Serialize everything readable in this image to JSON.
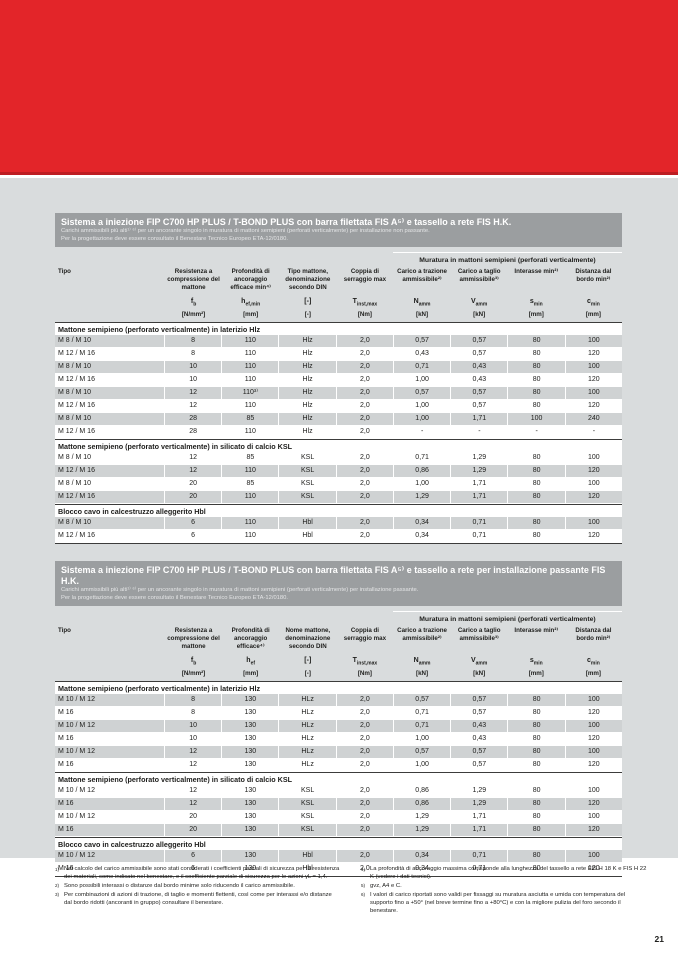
{
  "page": {
    "number": "21"
  },
  "colors": {
    "header_red": "#e32529",
    "header_red_edge": "#bd1d22",
    "page_gray": "#d9dcdd",
    "title_band_gray": "#9b9ea0",
    "row_shaded_gray": "#cfd2d3"
  },
  "shared": {
    "muratura_header": "Muratura in mattoni semipieni (perforati verticalmente)"
  },
  "tables": [
    {
      "title": "Sistema a iniezione FIP C700 HP PLUS / T-BOND PLUS con barra filettata FIS A⁵⁾ e tassello a rete FIS H.K.",
      "subtitle1": "Carichi ammissibili più alti¹⁾ ⁶⁾ per un ancorante singolo in muratura di mattoni semipieni (perforati verticalmente) per installazione non passante.",
      "subtitle2": "Per la progettazione deve essere consultato il Benestare Tecnico Europeo ETA-12/0180.",
      "columns": [
        {
          "label": "Tipo",
          "symbol": "",
          "unit": ""
        },
        {
          "label": "Resistenza a compressione del mattone",
          "symbol": "f~b",
          "unit": "[N/mm²]"
        },
        {
          "label": "Profondità di ancoraggio efficace min⁴⁾",
          "symbol": "h~ef,min",
          "unit": "[mm]"
        },
        {
          "label": "Tipo mattone, denominazione secondo DIN",
          "symbol": "[-]",
          "unit": "[-]"
        },
        {
          "label": "Coppia di serraggio max",
          "symbol": "T~inst,max",
          "unit": "[Nm]"
        },
        {
          "label": "Carico a trazione ammissibile²⁾",
          "symbol": "N~amm",
          "unit": "[kN]"
        },
        {
          "label": "Carico a taglio ammissibile³⁾",
          "symbol": "V~amm",
          "unit": "[kN]"
        },
        {
          "label": "Interasse min²⁾",
          "symbol": "s~min",
          "unit": "[mm]"
        },
        {
          "label": "Distanza dal bordo min²⁾",
          "symbol": "c~min",
          "unit": "[mm]"
        }
      ],
      "sections": [
        {
          "header": "Mattone semipieno (perforato verticalmente) in laterizio Hlz",
          "rows": [
            {
              "shaded": true,
              "cells": [
                "M 8 / M 10",
                "8",
                "110",
                "Hlz",
                "2,0",
                "0,57",
                "0,57",
                "80",
                "100"
              ]
            },
            {
              "shaded": false,
              "cells": [
                "M 12 / M 16",
                "8",
                "110",
                "Hlz",
                "2,0",
                "0,43",
                "0,57",
                "80",
                "120"
              ]
            },
            {
              "shaded": true,
              "cells": [
                "M 8 / M 10",
                "10",
                "110",
                "Hlz",
                "2,0",
                "0,71",
                "0,43",
                "80",
                "100"
              ]
            },
            {
              "shaded": false,
              "cells": [
                "M 12 / M 16",
                "10",
                "110",
                "Hlz",
                "2,0",
                "1,00",
                "0,43",
                "80",
                "120"
              ]
            },
            {
              "shaded": true,
              "cells": [
                "M 8 / M 10",
                "12",
                "110³⁾",
                "Hlz",
                "2,0",
                "0,57",
                "0,57",
                "80",
                "100"
              ]
            },
            {
              "shaded": false,
              "cells": [
                "M 12 / M 16",
                "12",
                "110",
                "Hlz",
                "2,0",
                "1,00",
                "0,57",
                "80",
                "120"
              ]
            },
            {
              "shaded": true,
              "cells": [
                "M 8 / M 10",
                "28",
                "85",
                "Hlz",
                "2,0",
                "1,00",
                "1,71",
                "100",
                "240"
              ]
            },
            {
              "shaded": false,
              "cells": [
                "M 12 / M 16",
                "28",
                "110",
                "Hlz",
                "2,0",
                "-",
                "-",
                "-",
                "-"
              ]
            }
          ]
        },
        {
          "header": "Mattone semipieno (perforato verticalmente) in silicato di calcio KSL",
          "rows": [
            {
              "shaded": false,
              "cells": [
                "M 8 / M 10",
                "12",
                "85",
                "KSL",
                "2,0",
                "0,71",
                "1,29",
                "80",
                "100"
              ]
            },
            {
              "shaded": true,
              "cells": [
                "M 12 / M 16",
                "12",
                "110",
                "KSL",
                "2,0",
                "0,86",
                "1,29",
                "80",
                "120"
              ]
            },
            {
              "shaded": false,
              "cells": [
                "M 8 / M 10",
                "20",
                "85",
                "KSL",
                "2,0",
                "1,00",
                "1,71",
                "80",
                "100"
              ]
            },
            {
              "shaded": true,
              "cells": [
                "M 12 / M 16",
                "20",
                "110",
                "KSL",
                "2,0",
                "1,29",
                "1,71",
                "80",
                "120"
              ]
            }
          ]
        },
        {
          "header": "Blocco cavo in calcestruzzo alleggerito Hbl",
          "rows": [
            {
              "shaded": true,
              "cells": [
                "M 8 / M 10",
                "6",
                "110",
                "Hbl",
                "2,0",
                "0,34",
                "0,71",
                "80",
                "100"
              ]
            },
            {
              "shaded": false,
              "cells": [
                "M 12 / M 16",
                "6",
                "110",
                "Hbl",
                "2,0",
                "0,34",
                "0,71",
                "80",
                "120"
              ]
            }
          ]
        }
      ]
    },
    {
      "title": "Sistema a iniezione FIP C700 HP PLUS / T-BOND PLUS con barra filettata FIS A⁵⁾ e tassello a rete per installazione passante FIS H.K.",
      "subtitle1": "Carichi ammissibili più alti¹⁾ ⁶⁾ per un ancorante singolo in muratura di mattoni semipieni (perforati verticalmente) per installazione passante.",
      "subtitle2": "Per la progettazione deve essere consultato il Benestare Tecnico Europeo ETA-12/0180.",
      "columns": [
        {
          "label": "Tipo",
          "symbol": "",
          "unit": ""
        },
        {
          "label": "Resistenza a compressione del mattone",
          "symbol": "f~b",
          "unit": "[N/mm²]"
        },
        {
          "label": "Profondità di ancoraggio efficace⁴⁾",
          "symbol": "h~ef",
          "unit": "[mm]"
        },
        {
          "label": "Nome mattone, denominazione secondo DIN",
          "symbol": "[-]",
          "unit": "[-]"
        },
        {
          "label": "Coppia di serraggio max",
          "symbol": "T~inst,max",
          "unit": "[Nm]"
        },
        {
          "label": "Carico a trazione ammissibile²⁾",
          "symbol": "N~amm",
          "unit": "[kN]"
        },
        {
          "label": "Carico a taglio ammissibile³⁾",
          "symbol": "V~amm",
          "unit": "[kN]"
        },
        {
          "label": "Interasse min²⁾",
          "symbol": "s~min",
          "unit": "[mm]"
        },
        {
          "label": "Distanza dal bordo min²⁾",
          "symbol": "c~min",
          "unit": "[mm]"
        }
      ],
      "sections": [
        {
          "header": "Mattone semipieno (perforato verticalmente) in laterizio Hlz",
          "rows": [
            {
              "shaded": true,
              "cells": [
                "M 10 / M 12",
                "8",
                "130",
                "HLz",
                "2,0",
                "0,57",
                "0,57",
                "80",
                "100"
              ]
            },
            {
              "shaded": false,
              "cells": [
                "M 16",
                "8",
                "130",
                "HLz",
                "2,0",
                "0,71",
                "0,57",
                "80",
                "120"
              ]
            },
            {
              "shaded": true,
              "cells": [
                "M 10 / M 12",
                "10",
                "130",
                "HLz",
                "2,0",
                "0,71",
                "0,43",
                "80",
                "100"
              ]
            },
            {
              "shaded": false,
              "cells": [
                "M 16",
                "10",
                "130",
                "HLz",
                "2,0",
                "1,00",
                "0,43",
                "80",
                "120"
              ]
            },
            {
              "shaded": true,
              "cells": [
                "M 10 / M 12",
                "12",
                "130",
                "HLz",
                "2,0",
                "0,57",
                "0,57",
                "80",
                "100"
              ]
            },
            {
              "shaded": false,
              "cells": [
                "M 16",
                "12",
                "130",
                "HLz",
                "2,0",
                "1,00",
                "0,57",
                "80",
                "120"
              ]
            }
          ]
        },
        {
          "header": "Mattone semipieno (perforato verticalmente) in silicato di calcio KSL",
          "rows": [
            {
              "shaded": false,
              "cells": [
                "M 10 / M 12",
                "12",
                "130",
                "KSL",
                "2,0",
                "0,86",
                "1,29",
                "80",
                "100"
              ]
            },
            {
              "shaded": true,
              "cells": [
                "M 16",
                "12",
                "130",
                "KSL",
                "2,0",
                "0,86",
                "1,29",
                "80",
                "120"
              ]
            },
            {
              "shaded": false,
              "cells": [
                "M 10 / M 12",
                "20",
                "130",
                "KSL",
                "2,0",
                "1,29",
                "1,71",
                "80",
                "100"
              ]
            },
            {
              "shaded": true,
              "cells": [
                "M 16",
                "20",
                "130",
                "KSL",
                "2,0",
                "1,29",
                "1,71",
                "80",
                "120"
              ]
            }
          ]
        },
        {
          "header": "Blocco cavo in calcestruzzo alleggerito Hbl",
          "rows": [
            {
              "shaded": true,
              "cells": [
                "M 10 / M 12",
                "6",
                "130",
                "Hbl",
                "2,0",
                "0,34",
                "0,71",
                "80",
                "100"
              ]
            },
            {
              "shaded": false,
              "cells": [
                "M 16",
                "6",
                "130",
                "Hbl",
                "2,0",
                "0,34",
                "0,71",
                "80",
                "120"
              ]
            }
          ]
        }
      ]
    }
  ],
  "footnotes": {
    "left": [
      {
        "marker": "1)",
        "text": "Nel calcolo del carico ammissibile sono stati considerati i coefficienti parziali di sicurezza per la resistenza dei materiali, come indicato nel benestare, e il coefficiente parziale di sicurezza per le azioni γL = 1,4."
      },
      {
        "marker": "2)",
        "text": "Sono possibili interassi o distanze dal bordo minime solo riducendo il carico ammissibile."
      },
      {
        "marker": "3)",
        "text": "Per combinazioni di azioni di trazione, di taglio e momenti flettenti, così come per interassi e/o distanze dal bordo ridotti (ancoranti in gruppo) consultare il benestare."
      }
    ],
    "right": [
      {
        "marker": "4)",
        "text": "La profondità di ancoraggio massima corrisponde alla lunghezza del tassello a rete FIS H 18 K e FIS H 22 K (vedere i dati tecnici)."
      },
      {
        "marker": "5)",
        "text": "gvz, A4 e C."
      },
      {
        "marker": "6)",
        "text": "I valori di carico riportati sono validi per fissaggi su muratura asciutta e umida con temperatura del supporto fino a +50° (nel breve termine fino a +80°C) e con la migliore pulizia del foro secondo il benestare."
      }
    ]
  }
}
